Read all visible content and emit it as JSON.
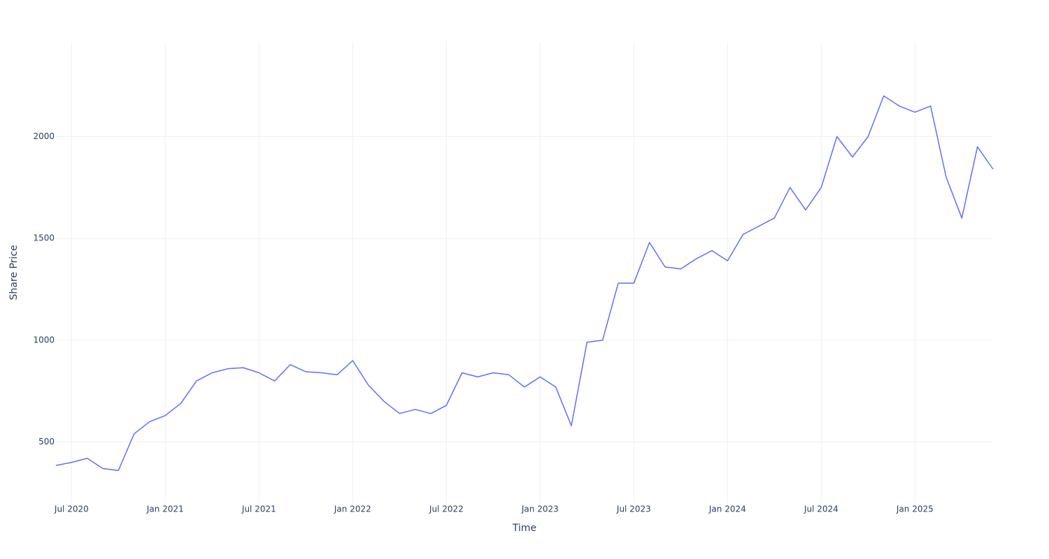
{
  "chart_data": {
    "type": "line",
    "x_label": "Time",
    "y_label": "Share Price",
    "x": [
      "2020-06",
      "2020-07",
      "2020-08",
      "2020-09",
      "2020-10",
      "2020-11",
      "2020-12",
      "2021-01",
      "2021-02",
      "2021-03",
      "2021-04",
      "2021-05",
      "2021-06",
      "2021-07",
      "2021-08",
      "2021-09",
      "2021-10",
      "2021-11",
      "2021-12",
      "2022-01",
      "2022-02",
      "2022-03",
      "2022-04",
      "2022-05",
      "2022-06",
      "2022-07",
      "2022-08",
      "2022-09",
      "2022-10",
      "2022-11",
      "2022-12",
      "2023-01",
      "2023-02",
      "2023-03",
      "2023-04",
      "2023-05",
      "2023-06",
      "2023-07",
      "2023-08",
      "2023-09",
      "2023-10",
      "2023-11",
      "2023-12",
      "2024-01",
      "2024-02",
      "2024-03",
      "2024-04",
      "2024-05",
      "2024-06",
      "2024-07",
      "2024-08",
      "2024-09",
      "2024-10",
      "2024-11",
      "2024-12",
      "2025-01",
      "2025-02",
      "2025-03",
      "2025-04",
      "2025-05",
      "2025-06"
    ],
    "series": [
      {
        "name": "Share Price",
        "color": "#636efa",
        "values": [
          385,
          400,
          420,
          370,
          360,
          540,
          600,
          630,
          690,
          800,
          840,
          860,
          865,
          840,
          800,
          880,
          845,
          840,
          830,
          900,
          780,
          700,
          640,
          660,
          640,
          680,
          840,
          820,
          840,
          830,
          770,
          820,
          770,
          580,
          990,
          1000,
          1280,
          1280,
          1480,
          1360,
          1350,
          1400,
          1440,
          1390,
          1520,
          1560,
          1600,
          1750,
          1640,
          1750,
          2000,
          1900,
          2000,
          2200,
          2150,
          2120,
          2150,
          1800,
          1600,
          1950,
          1840
        ]
      }
    ],
    "xlim": [
      "2020-06",
      "2025-06"
    ],
    "xticks": [
      {
        "value": "2020-07",
        "label": "Jul 2020"
      },
      {
        "value": "2021-01",
        "label": "Jan 2021"
      },
      {
        "value": "2021-07",
        "label": "Jul 2021"
      },
      {
        "value": "2022-01",
        "label": "Jan 2022"
      },
      {
        "value": "2022-07",
        "label": "Jul 2022"
      },
      {
        "value": "2023-01",
        "label": "Jan 2023"
      },
      {
        "value": "2023-07",
        "label": "Jul 2023"
      },
      {
        "value": "2024-01",
        "label": "Jan 2024"
      },
      {
        "value": "2024-07",
        "label": "Jul 2024"
      },
      {
        "value": "2025-01",
        "label": "Jan 2025"
      }
    ],
    "ylim": [
      200,
      2465
    ],
    "yticks": [
      500,
      1000,
      1500,
      2000
    ],
    "grid": true
  }
}
